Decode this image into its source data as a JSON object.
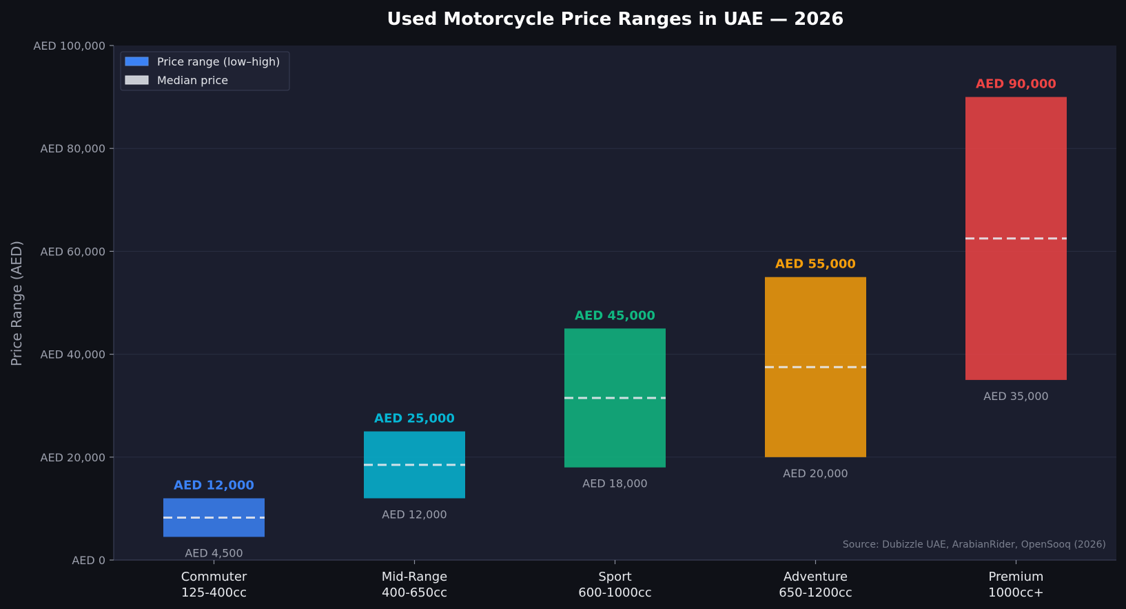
{
  "chart_data": {
    "type": "bar",
    "subtype": "floating-range",
    "title": "Used Motorcycle Price Ranges in UAE — 2026",
    "xlabel": "",
    "ylabel": "Price Range (AED)",
    "ylim": [
      0,
      100000
    ],
    "yticks": [
      0,
      20000,
      40000,
      60000,
      80000,
      100000
    ],
    "ytick_labels": [
      "AED 0",
      "AED 20,000",
      "AED 40,000",
      "AED 60,000",
      "AED 80,000",
      "AED 100,000"
    ],
    "grid": true,
    "legend_position": "top-left",
    "legend": [
      {
        "label": "Price range (low–high)",
        "swatch": "#3b82f6"
      },
      {
        "label": "Median price",
        "swatch": "#c9ccd3"
      }
    ],
    "categories": [
      {
        "line1": "Commuter",
        "line2": "125-400cc"
      },
      {
        "line1": "Mid-Range",
        "line2": "400-650cc"
      },
      {
        "line1": "Sport",
        "line2": "600-1000cc"
      },
      {
        "line1": "Adventure",
        "line2": "650-1200cc"
      },
      {
        "line1": "Premium",
        "line2": "1000cc+"
      }
    ],
    "low": [
      4500,
      12000,
      18000,
      20000,
      35000
    ],
    "high": [
      12000,
      25000,
      45000,
      55000,
      90000
    ],
    "median": [
      8250,
      18500,
      31500,
      37500,
      62500
    ],
    "low_labels": [
      "AED 4,500",
      "AED 12,000",
      "AED 18,000",
      "AED 20,000",
      "AED 35,000"
    ],
    "high_labels": [
      "AED 12,000",
      "AED 25,000",
      "AED 45,000",
      "AED 55,000",
      "AED 90,000"
    ],
    "colors": [
      "#3b82f6",
      "#06b6d4",
      "#10b981",
      "#f59e0b",
      "#ef4444"
    ],
    "source_note": "Source: Dubizzle UAE, ArabianRider, OpenSooq (2026)"
  }
}
